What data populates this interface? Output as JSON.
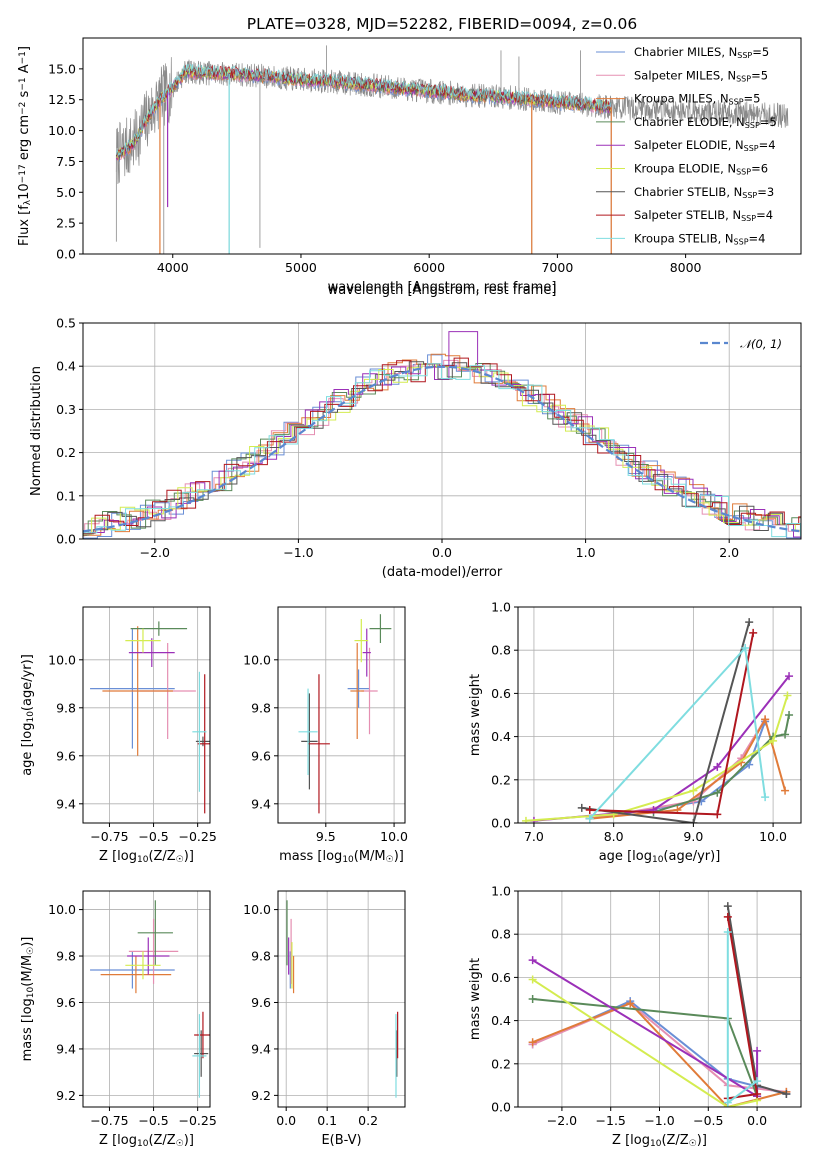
{
  "figure": {
    "title": "PLATE=0328, MJD=52282, FIBERID=0094, z=0.06"
  },
  "colors": {
    "Chabrier MILES": "#6a8fd6",
    "Salpeter MILES": "#e58fb2",
    "Kroupa MILES": "#e07b39",
    "Chabrier ELODIE": "#5a8a5a",
    "Salpeter ELODIE": "#9b30b8",
    "Kroupa ELODIE": "#d4ec50",
    "Chabrier STELIB": "#555555",
    "Salpeter STELIB": "#b0171f",
    "Kroupa STELIB": "#7fdde0"
  },
  "chart_data": [
    {
      "id": "spectrum",
      "type": "line",
      "title": "PLATE=0328, MJD=52282, FIBERID=0094, z=0.06",
      "xlabel": "wavelength [Angstrom, rest frame]",
      "ylabel": "Flux [f_λ 10^-17 erg cm^-2 s^-1 A^-1]",
      "xlim": [
        3300,
        8900
      ],
      "ylim": [
        0,
        17.5
      ],
      "xticks": [
        4000,
        5000,
        6000,
        7000,
        8000
      ],
      "yticks": [
        0.0,
        2.5,
        5.0,
        7.5,
        10.0,
        12.5,
        15.0
      ],
      "grid": false,
      "legend_position": "right",
      "legend": [
        {
          "name": "Chabrier MILES",
          "nssp": "5"
        },
        {
          "name": "Salpeter MILES",
          "nssp": "5"
        },
        {
          "name": "Kroupa MILES",
          "nssp": "5"
        },
        {
          "name": "Chabrier ELODIE",
          "nssp": "5"
        },
        {
          "name": "Salpeter ELODIE",
          "nssp": "4"
        },
        {
          "name": "Kroupa ELODIE",
          "nssp": "6"
        },
        {
          "name": "Chabrier STELIB",
          "nssp": "3"
        },
        {
          "name": "Salpeter STELIB",
          "nssp": "4"
        },
        {
          "name": "Kroupa STELIB",
          "nssp": "4"
        }
      ],
      "continuum": {
        "x": [
          3570,
          3700,
          3800,
          3900,
          4000,
          4100,
          4200,
          4400,
          4600,
          4800,
          5000,
          5200,
          5400,
          5600,
          5800,
          6000,
          6200,
          6400,
          6600,
          6800,
          7000,
          7200,
          7400,
          7600,
          7800,
          8000,
          8200,
          8400,
          8600,
          8800
        ],
        "y": [
          8.0,
          9.0,
          11.0,
          12.5,
          13.5,
          14.8,
          14.7,
          14.6,
          14.5,
          14.3,
          14.1,
          14.0,
          13.8,
          13.6,
          13.4,
          13.2,
          13.0,
          12.8,
          12.7,
          12.5,
          12.3,
          12.1,
          11.9,
          11.8,
          11.7,
          11.6,
          11.5,
          11.4,
          11.3,
          11.2
        ]
      },
      "data_extent": [
        3560,
        8800
      ],
      "model_extent": [
        3560,
        7420
      ]
    },
    {
      "id": "residuals",
      "type": "histogram",
      "xlabel": "(data-model)/error",
      "ylabel": "Normed distribution",
      "xlim": [
        -2.5,
        2.5
      ],
      "ylim": [
        0,
        0.5
      ],
      "xticks": [
        -2,
        -1,
        0,
        1,
        2
      ],
      "yticks": [
        0.0,
        0.1,
        0.2,
        0.3,
        0.4,
        0.5
      ],
      "grid": true,
      "legend_position": "top-right",
      "reference_curve": "𝒩(0, 1)",
      "bin_width": 0.1
    },
    {
      "id": "age-vs-Z",
      "type": "scatter",
      "xlabel": "Z [log10(Z/Z☉)]",
      "ylabel": "age  [log10(age/yr)]",
      "xlim": [
        -0.9,
        -0.18
      ],
      "ylim": [
        9.32,
        10.22
      ],
      "xticks": [
        -0.75,
        -0.5,
        -0.25
      ],
      "yticks": [
        9.4,
        9.6,
        9.8,
        10.0
      ],
      "grid": true,
      "points": [
        {
          "model": "Chabrier MILES",
          "x": -0.62,
          "xerr": 0.24,
          "y": 9.88,
          "yerr": 0.25
        },
        {
          "model": "Salpeter MILES",
          "x": -0.42,
          "xerr": 0.16,
          "y": 9.87,
          "yerr": 0.2
        },
        {
          "model": "Kroupa MILES",
          "x": -0.59,
          "xerr": 0.2,
          "y": 9.87,
          "yerr": 0.27
        },
        {
          "model": "Chabrier ELODIE",
          "x": -0.47,
          "xerr": 0.16,
          "y": 10.13,
          "yerr": 0.03
        },
        {
          "model": "Salpeter ELODIE",
          "x": -0.51,
          "xerr": 0.13,
          "y": 10.03,
          "yerr": 0.06
        },
        {
          "model": "Kroupa ELODIE",
          "x": -0.56,
          "xerr": 0.1,
          "y": 10.08,
          "yerr": 0.05
        },
        {
          "model": "Chabrier STELIB",
          "x": -0.22,
          "xerr": 0.04,
          "y": 9.66,
          "yerr": 0.02
        },
        {
          "model": "Salpeter STELIB",
          "x": -0.21,
          "xerr": 0.04,
          "y": 9.65,
          "yerr": 0.29
        },
        {
          "model": "Kroupa STELIB",
          "x": -0.24,
          "xerr": 0.04,
          "y": 9.7,
          "yerr": 0.25
        }
      ]
    },
    {
      "id": "age-vs-mass",
      "type": "scatter",
      "xlabel": "mass [log10(M/M☉)]",
      "ylabel": "",
      "xlim": [
        9.15,
        10.08
      ],
      "ylim": [
        9.32,
        10.22
      ],
      "xticks": [
        9.5,
        10.0
      ],
      "yticks": [
        9.4,
        9.6,
        9.8,
        10.0
      ],
      "grid": true,
      "points": [
        {
          "model": "Chabrier MILES",
          "x": 9.74,
          "xerr": 0.08,
          "y": 9.88,
          "yerr": 0.08
        },
        {
          "model": "Salpeter MILES",
          "x": 9.82,
          "xerr": 0.06,
          "y": 9.87,
          "yerr": 0.18
        },
        {
          "model": "Kroupa MILES",
          "x": 9.73,
          "xerr": 0.05,
          "y": 9.87,
          "yerr": 0.2
        },
        {
          "model": "Chabrier ELODIE",
          "x": 9.9,
          "xerr": 0.08,
          "y": 10.13,
          "yerr": 0.06
        },
        {
          "model": "Salpeter ELODIE",
          "x": 9.8,
          "xerr": 0.03,
          "y": 10.03,
          "yerr": 0.1
        },
        {
          "model": "Kroupa ELODIE",
          "x": 9.76,
          "xerr": 0.05,
          "y": 10.08,
          "yerr": 0.09
        },
        {
          "model": "Chabrier STELIB",
          "x": 9.38,
          "xerr": 0.06,
          "y": 9.66,
          "yerr": 0.2
        },
        {
          "model": "Salpeter STELIB",
          "x": 9.45,
          "xerr": 0.08,
          "y": 9.65,
          "yerr": 0.29
        },
        {
          "model": "Kroupa STELIB",
          "x": 9.37,
          "xerr": 0.07,
          "y": 9.7,
          "yerr": 0.18
        }
      ]
    },
    {
      "id": "weights-vs-age",
      "type": "line",
      "xlabel": "age  [log10(age/yr)]",
      "ylabel": "mass weight",
      "xlim": [
        6.8,
        10.35
      ],
      "ylim": [
        0,
        1.0
      ],
      "xticks": [
        7,
        8,
        9,
        10
      ],
      "yticks": [
        0.0,
        0.2,
        0.4,
        0.6,
        0.8,
        1.0
      ],
      "grid": true,
      "series": [
        {
          "model": "Chabrier MILES",
          "x": [
            7.7,
            9.1,
            9.7,
            9.9
          ],
          "y": [
            0.02,
            0.1,
            0.27,
            0.47
          ]
        },
        {
          "model": "Salpeter MILES",
          "x": [
            7.7,
            9.0,
            9.6,
            9.9
          ],
          "y": [
            0.02,
            0.1,
            0.3,
            0.48
          ]
        },
        {
          "model": "Kroupa MILES",
          "x": [
            7.7,
            8.8,
            9.6,
            9.9,
            10.15
          ],
          "y": [
            0.02,
            0.06,
            0.28,
            0.48,
            0.15
          ]
        },
        {
          "model": "Chabrier ELODIE",
          "x": [
            8.5,
            9.3,
            10.0,
            10.15,
            10.2
          ],
          "y": [
            0.05,
            0.14,
            0.4,
            0.41,
            0.5
          ]
        },
        {
          "model": "Salpeter ELODIE",
          "x": [
            7.0,
            8.5,
            9.3,
            10.2
          ],
          "y": [
            0.01,
            0.06,
            0.26,
            0.68
          ]
        },
        {
          "model": "Kroupa ELODIE",
          "x": [
            6.9,
            8.0,
            9.0,
            10.0,
            10.18
          ],
          "y": [
            0.01,
            0.04,
            0.15,
            0.38,
            0.59
          ]
        },
        {
          "model": "Chabrier STELIB",
          "x": [
            7.6,
            9.0,
            9.7
          ],
          "y": [
            0.07,
            0.0,
            0.93
          ]
        },
        {
          "model": "Salpeter STELIB",
          "x": [
            7.7,
            9.3,
            9.75
          ],
          "y": [
            0.06,
            0.04,
            0.88
          ]
        },
        {
          "model": "Kroupa STELIB",
          "x": [
            7.7,
            9.65,
            9.9
          ],
          "y": [
            0.02,
            0.81,
            0.12
          ]
        }
      ]
    },
    {
      "id": "mass-vs-Z",
      "type": "scatter",
      "xlabel": "Z [log10(Z/Z☉)]",
      "ylabel": "mass [log10(M/M☉)]",
      "xlim": [
        -0.9,
        -0.18
      ],
      "ylim": [
        9.15,
        10.08
      ],
      "xticks": [
        -0.75,
        -0.5,
        -0.25
      ],
      "yticks": [
        9.2,
        9.4,
        9.6,
        9.8,
        10.0
      ],
      "grid": true,
      "points": [
        {
          "model": "Chabrier MILES",
          "x": -0.62,
          "xerr": 0.24,
          "y": 9.74,
          "yerr": 0.08
        },
        {
          "model": "Salpeter MILES",
          "x": -0.5,
          "xerr": 0.14,
          "y": 9.82,
          "yerr": 0.14
        },
        {
          "model": "Kroupa MILES",
          "x": -0.6,
          "xerr": 0.2,
          "y": 9.72,
          "yerr": 0.08
        },
        {
          "model": "Chabrier ELODIE",
          "x": -0.49,
          "xerr": 0.1,
          "y": 9.9,
          "yerr": 0.14
        },
        {
          "model": "Salpeter ELODIE",
          "x": -0.53,
          "xerr": 0.12,
          "y": 9.8,
          "yerr": 0.08
        },
        {
          "model": "Kroupa ELODIE",
          "x": -0.56,
          "xerr": 0.1,
          "y": 9.76,
          "yerr": 0.06
        },
        {
          "model": "Chabrier STELIB",
          "x": -0.23,
          "xerr": 0.04,
          "y": 9.38,
          "yerr": 0.1
        },
        {
          "model": "Salpeter STELIB",
          "x": -0.22,
          "xerr": 0.05,
          "y": 9.46,
          "yerr": 0.1
        },
        {
          "model": "Kroupa STELIB",
          "x": -0.24,
          "xerr": 0.04,
          "y": 9.37,
          "yerr": 0.18
        }
      ]
    },
    {
      "id": "mass-vs-ebv",
      "type": "scatter",
      "xlabel": "E(B-V)",
      "ylabel": "",
      "xlim": [
        -0.02,
        0.29
      ],
      "ylim": [
        9.15,
        10.08
      ],
      "xticks": [
        0.0,
        0.1,
        0.2
      ],
      "yticks": [
        9.2,
        9.4,
        9.6,
        9.8,
        10.0
      ],
      "grid": true,
      "points": [
        {
          "model": "Chabrier MILES",
          "x": 0.01,
          "xerr": 0,
          "y": 9.74,
          "yerr": 0.08
        },
        {
          "model": "Salpeter MILES",
          "x": 0.012,
          "xerr": 0,
          "y": 9.82,
          "yerr": 0.14
        },
        {
          "model": "Kroupa MILES",
          "x": 0.018,
          "xerr": 0,
          "y": 9.72,
          "yerr": 0.08
        },
        {
          "model": "Chabrier ELODIE",
          "x": 0.002,
          "xerr": 0,
          "y": 9.9,
          "yerr": 0.14
        },
        {
          "model": "Salpeter ELODIE",
          "x": 0.006,
          "xerr": 0,
          "y": 9.8,
          "yerr": 0.08
        },
        {
          "model": "Kroupa ELODIE",
          "x": 0.014,
          "xerr": 0,
          "y": 9.76,
          "yerr": 0.1
        },
        {
          "model": "Chabrier STELIB",
          "x": 0.27,
          "xerr": 0,
          "y": 9.38,
          "yerr": 0.1
        },
        {
          "model": "Salpeter STELIB",
          "x": 0.272,
          "xerr": 0,
          "y": 9.46,
          "yerr": 0.1
        },
        {
          "model": "Kroupa STELIB",
          "x": 0.268,
          "xerr": 0,
          "y": 9.37,
          "yerr": 0.18
        }
      ]
    },
    {
      "id": "weights-vs-Z",
      "type": "line",
      "xlabel": "Z [log10(Z/Z☉)]",
      "ylabel": "mass weight",
      "xlim": [
        -2.45,
        0.45
      ],
      "ylim": [
        0,
        1.0
      ],
      "xticks": [
        -2.0,
        -1.5,
        -1.0,
        -0.5,
        0.0
      ],
      "yticks": [
        0.0,
        0.2,
        0.4,
        0.6,
        0.8,
        1.0
      ],
      "grid": true,
      "series": [
        {
          "model": "Chabrier MILES",
          "x": [
            -2.3,
            -1.3,
            -0.3,
            0.3
          ],
          "y": [
            0.29,
            0.49,
            0.13,
            0.06
          ]
        },
        {
          "model": "Salpeter MILES",
          "x": [
            -2.3,
            -1.3,
            -0.3,
            0.3
          ],
          "y": [
            0.29,
            0.48,
            0.1,
            0.07
          ]
        },
        {
          "model": "Kroupa MILES",
          "x": [
            -2.3,
            -1.3,
            -0.3,
            0.3
          ],
          "y": [
            0.3,
            0.48,
            0.0,
            0.07
          ]
        },
        {
          "model": "Chabrier ELODIE",
          "x": [
            -2.3,
            -0.3,
            0.0
          ],
          "y": [
            0.5,
            0.41,
            0.05
          ]
        },
        {
          "model": "Salpeter ELODIE",
          "x": [
            -2.3,
            0.0,
            0.0
          ],
          "y": [
            0.68,
            0.05,
            0.26
          ]
        },
        {
          "model": "Kroupa ELODIE",
          "x": [
            -2.3,
            -0.3,
            0.0
          ],
          "y": [
            0.59,
            0.0,
            0.03
          ]
        },
        {
          "model": "Chabrier STELIB",
          "x": [
            -0.3,
            0.0,
            0.3
          ],
          "y": [
            0.93,
            0.1,
            0.06
          ]
        },
        {
          "model": "Salpeter STELIB",
          "x": [
            -0.3,
            0.0,
            -0.3
          ],
          "y": [
            0.88,
            0.06,
            0.04
          ]
        },
        {
          "model": "Kroupa STELIB",
          "x": [
            -0.3,
            -0.3,
            0.0
          ],
          "y": [
            0.81,
            0.02,
            0.12
          ]
        }
      ]
    }
  ]
}
